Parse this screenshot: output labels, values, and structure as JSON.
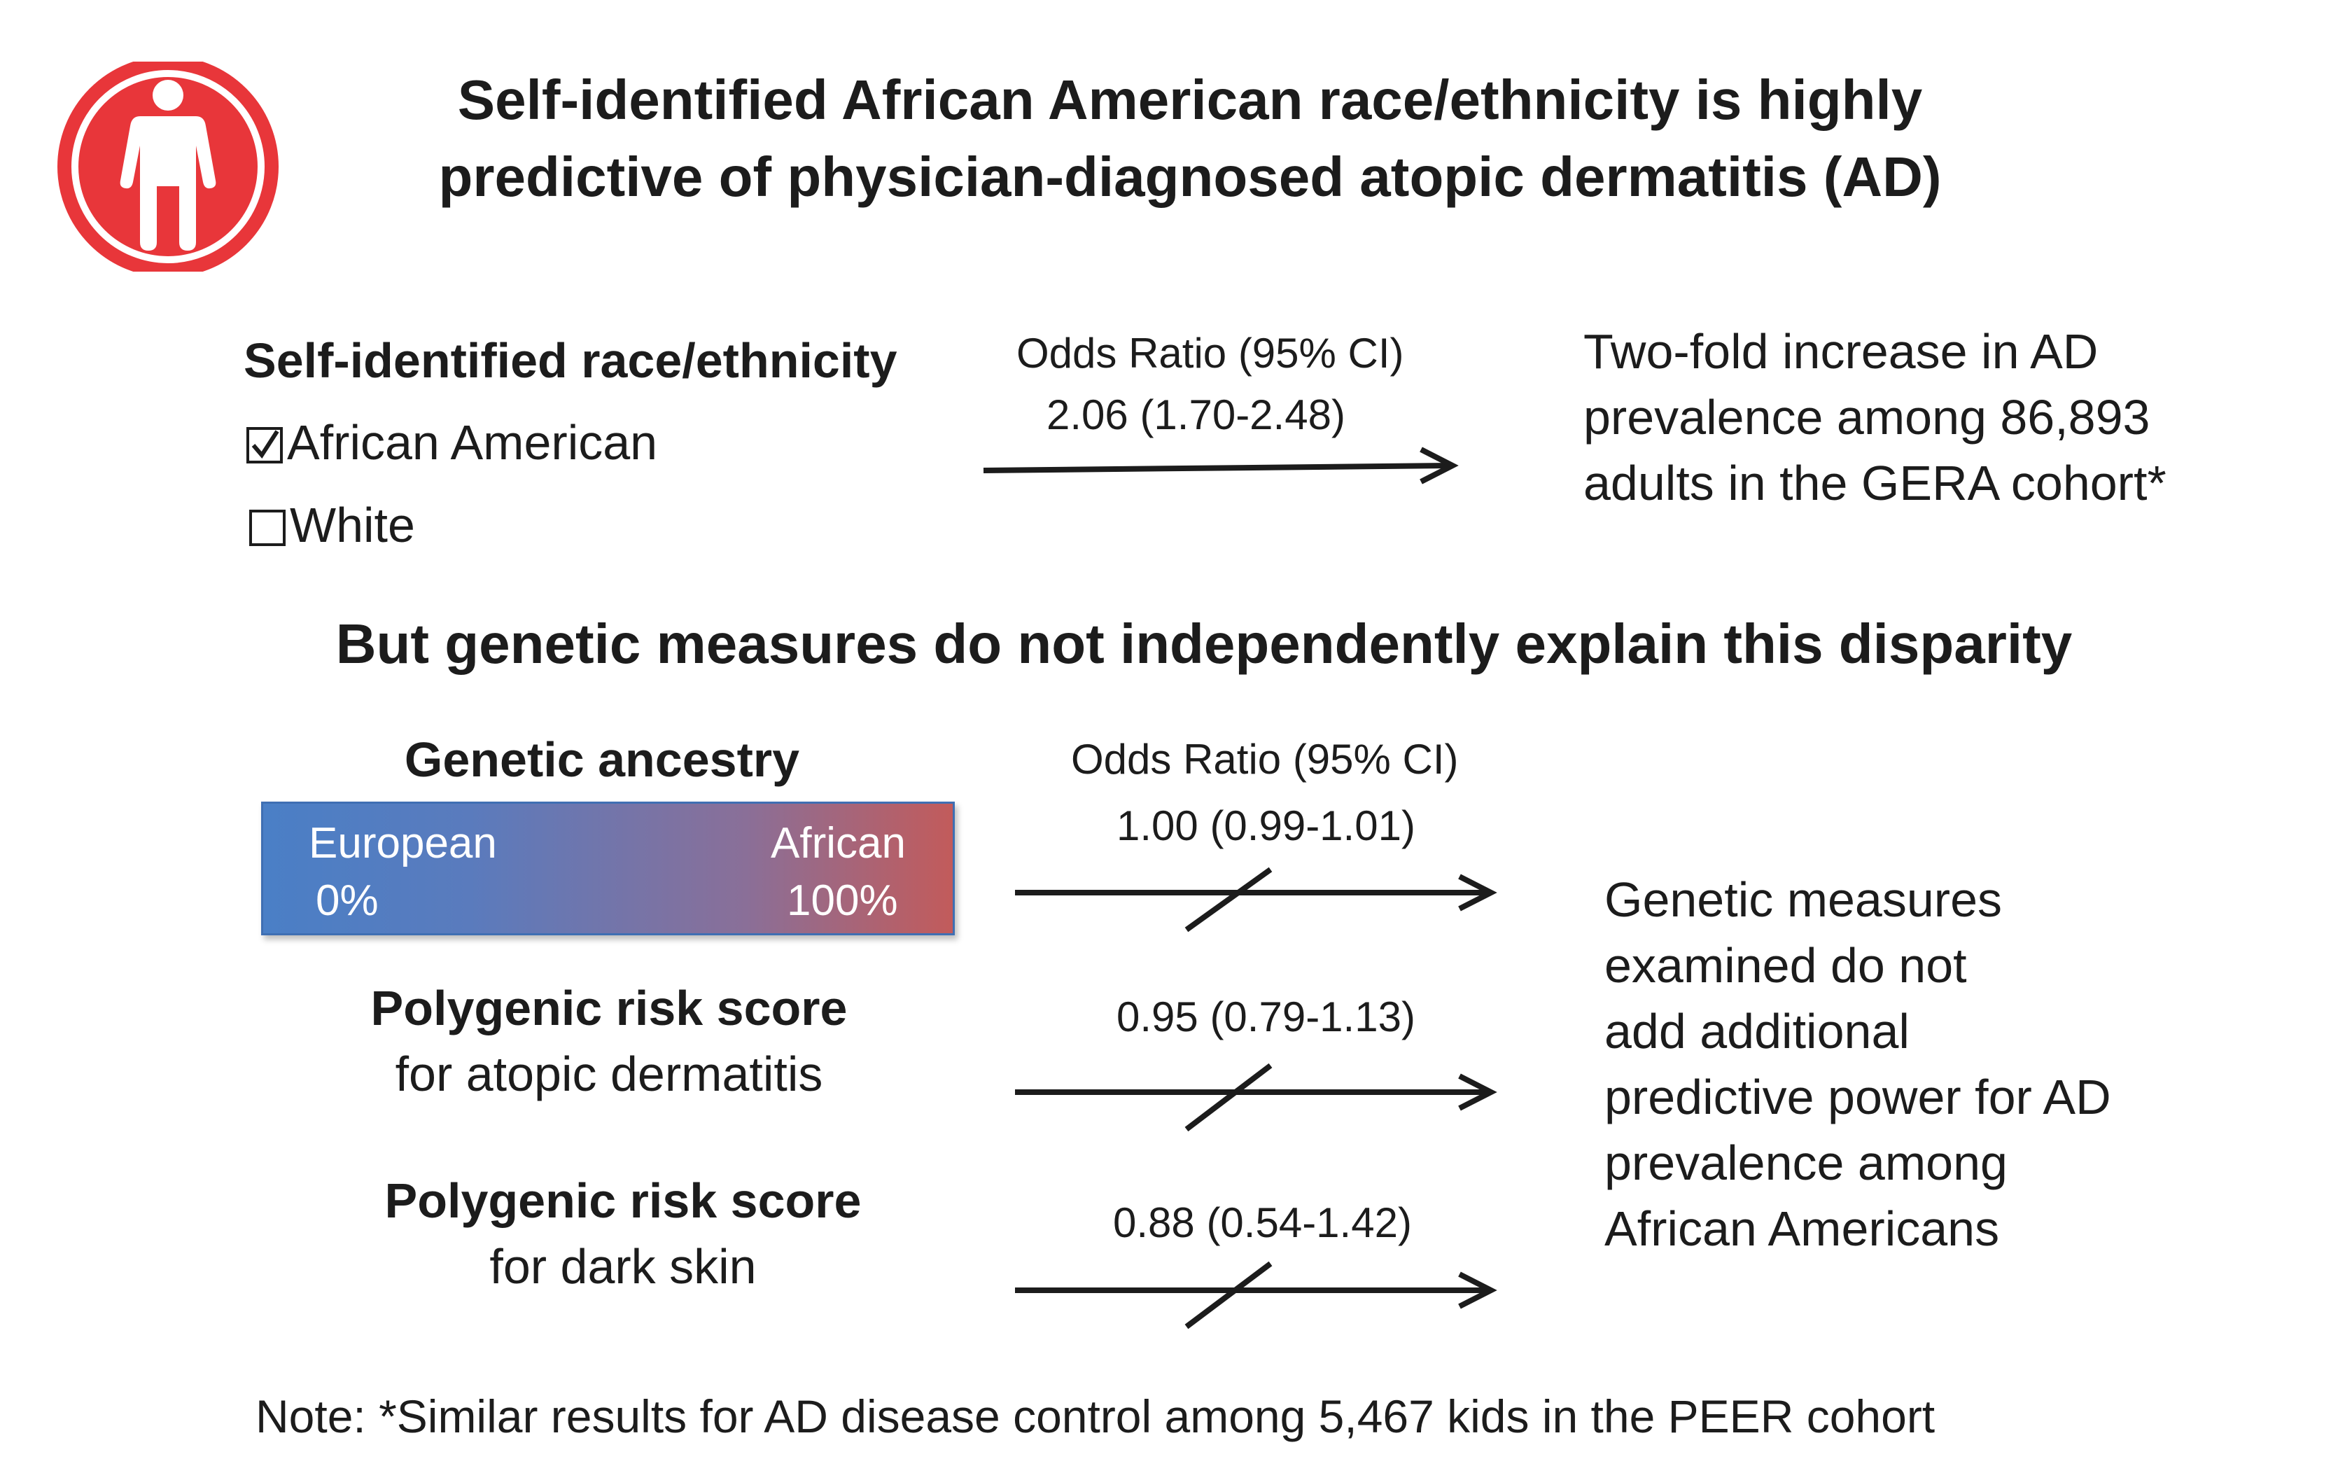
{
  "title": {
    "line1": "Self-identified African American race/ethnicity is highly",
    "line2": "predictive of physician-diagnosed atopic dermatitis (AD)"
  },
  "icon": "person-icon",
  "colors": {
    "icon_red": "#e8363a",
    "bar_left": "#4a7fc6",
    "bar_right": "#c25b5b",
    "text": "#1c1c1c"
  },
  "race_section": {
    "heading": "Self-identified race/ethnicity",
    "options": [
      {
        "label": "African American",
        "checked": true
      },
      {
        "label": "White",
        "checked": false
      }
    ],
    "or_header": "Odds Ratio (95% CI)",
    "or_value": "2.06 (1.70-2.48)",
    "result_lines": [
      "Two-fold increase in AD",
      "prevalence among 86,893",
      "adults in the GERA cohort*"
    ]
  },
  "subtitle": "But genetic measures do not independently explain this disparity",
  "genetic_section": {
    "ancestry": {
      "heading": "Genetic ancestry",
      "left_label": "European",
      "left_value": "0%",
      "right_label": "African",
      "right_value": "100%",
      "or_header": "Odds Ratio (95% CI)",
      "or_value": "1.00 (0.99-1.01)"
    },
    "prs_ad": {
      "heading": "Polygenic risk score",
      "sub": "for atopic dermatitis",
      "or_value": "0.95 (0.79-1.13)"
    },
    "prs_skin": {
      "heading": "Polygenic risk score",
      "sub": "for dark skin",
      "or_value": "0.88 (0.54-1.42)"
    },
    "conclusion_lines": [
      "Genetic measures",
      "examined do not",
      "add additional",
      "predictive power for AD",
      "prevalence among",
      "African Americans"
    ]
  },
  "note": "Note: *Similar results for AD disease control among 5,467 kids in the PEER cohort"
}
